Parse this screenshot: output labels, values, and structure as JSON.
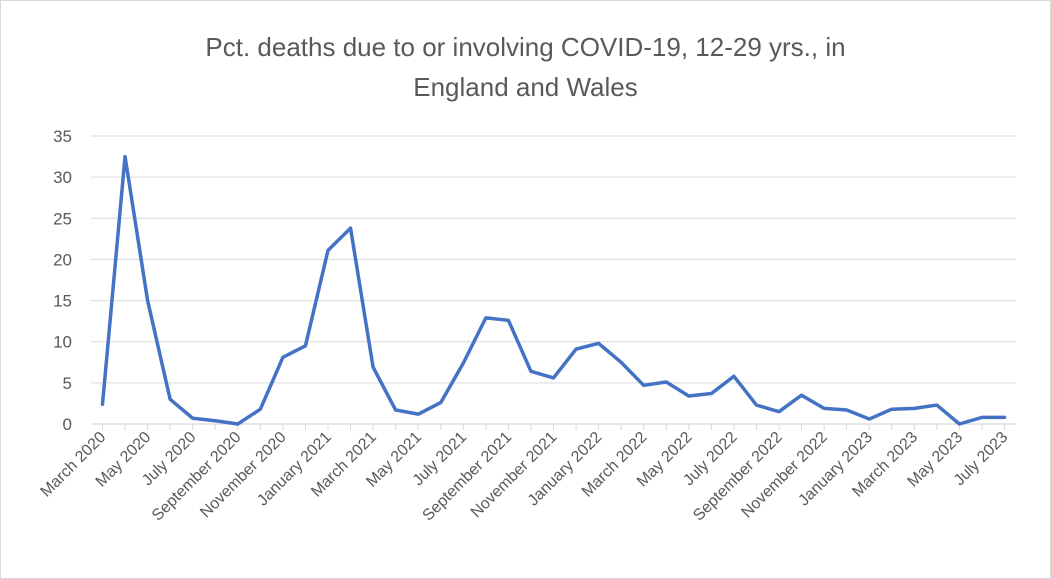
{
  "chart_data": {
    "type": "line",
    "title_line1": "Pct. deaths due to or involving COVID-19, 12-29 yrs., in",
    "title_line2": "England and Wales",
    "xlabel": "",
    "ylabel": "",
    "ylim": [
      0,
      35
    ],
    "yticks": [
      "0",
      "5",
      "10",
      "15",
      "20",
      "25",
      "30",
      "35"
    ],
    "grid": true,
    "legend": "none",
    "line_color": "#4472c4",
    "grid_color": "#d9d9d9",
    "x": [
      "March 2020",
      "April 2020",
      "May 2020",
      "June 2020",
      "July 2020",
      "August 2020",
      "September 2020",
      "October 2020",
      "November 2020",
      "December 2020",
      "January 2021",
      "February 2021",
      "March 2021",
      "April 2021",
      "May 2021",
      "June 2021",
      "July 2021",
      "August 2021",
      "September 2021",
      "October 2021",
      "November 2021",
      "December 2021",
      "January 2022",
      "February 2022",
      "March 2022",
      "April 2022",
      "May 2022",
      "June 2022",
      "July 2022",
      "August 2022",
      "September 2022",
      "October 2022",
      "November 2022",
      "December 2022",
      "January 2023",
      "February 2023",
      "March 2023",
      "April 2023",
      "May 2023",
      "June 2023",
      "July 2023"
    ],
    "xtick_labels": [
      "March 2020",
      "May 2020",
      "July 2020",
      "September 2020",
      "November 2020",
      "January 2021",
      "March 2021",
      "May 2021",
      "July 2021",
      "September 2021",
      "November 2021",
      "January 2022",
      "March 2022",
      "May 2022",
      "July 2022",
      "September 2022",
      "November 2022",
      "January 2023",
      "March 2023",
      "May 2023",
      "July 2023"
    ],
    "series": [
      {
        "values": [
          2.4,
          32.5,
          15.0,
          3.0,
          0.7,
          0.4,
          0.0,
          1.8,
          8.1,
          9.5,
          21.1,
          23.8,
          6.9,
          1.7,
          1.2,
          2.6,
          7.4,
          12.9,
          12.6,
          6.4,
          5.6,
          9.1,
          9.8,
          7.5,
          4.7,
          5.1,
          3.4,
          3.7,
          5.8,
          2.3,
          1.5,
          3.5,
          1.9,
          1.7,
          0.6,
          1.8,
          1.9,
          2.3,
          0.0,
          0.8,
          0.8
        ]
      }
    ]
  }
}
